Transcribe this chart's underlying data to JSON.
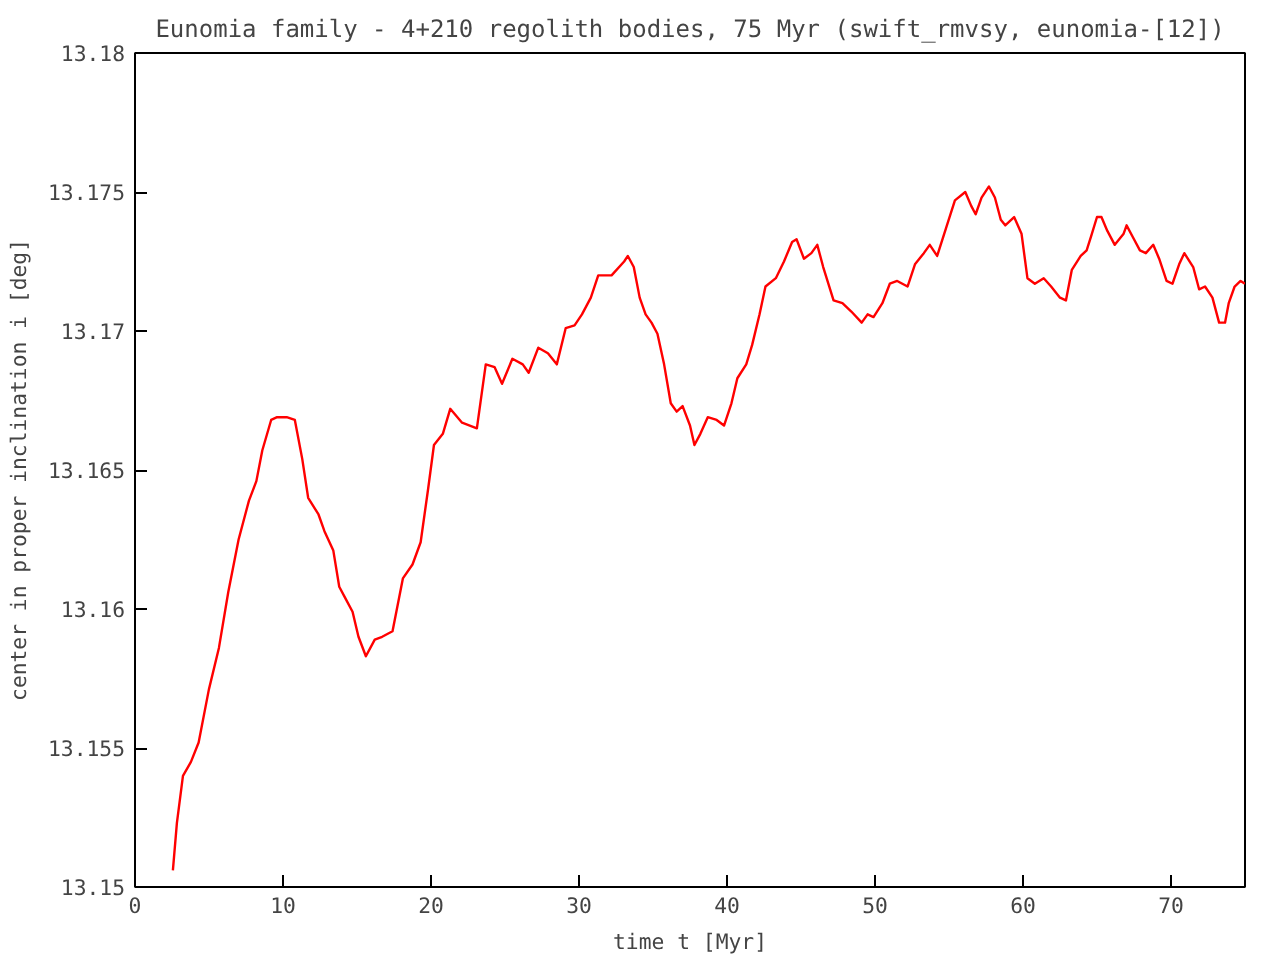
{
  "chart_data": {
    "type": "line",
    "title": "Eunomia family - 4+210 regolith bodies, 75 Myr (swift_rmvsy, eunomia-[12])",
    "xlabel": "time t [Myr]",
    "ylabel": "center in proper inclination i [deg]",
    "xlim": [
      0,
      75
    ],
    "ylim": [
      13.15,
      13.18
    ],
    "xticks": [
      0,
      10,
      20,
      30,
      40,
      50,
      60,
      70
    ],
    "yticks": [
      13.15,
      13.155,
      13.16,
      13.165,
      13.17,
      13.175,
      13.18
    ],
    "grid": false,
    "marker": "none",
    "line_style": "solid",
    "x": [
      2.56,
      2.83,
      3.24,
      3.78,
      4.3,
      4.99,
      5.67,
      6.3,
      7.0,
      7.7,
      8.2,
      8.6,
      9.2,
      9.6,
      10.25,
      10.8,
      11.3,
      11.7,
      12.4,
      12.8,
      13.4,
      13.8,
      14.2,
      14.7,
      15.1,
      15.6,
      16.2,
      16.7,
      17.4,
      18.1,
      18.75,
      19.3,
      19.8,
      20.2,
      20.8,
      21.3,
      22.1,
      23.1,
      23.7,
      24.3,
      24.8,
      25.5,
      26.2,
      26.6,
      27.25,
      27.9,
      28.5,
      29.1,
      29.7,
      30.2,
      30.8,
      31.3,
      32.2,
      33.05,
      33.3,
      33.7,
      34.1,
      34.5,
      34.9,
      35.3,
      35.75,
      36.2,
      36.6,
      37.0,
      37.5,
      37.8,
      38.2,
      38.7,
      39.3,
      39.8,
      40.3,
      40.7,
      41.3,
      41.7,
      42.2,
      42.6,
      43.3,
      43.85,
      44.4,
      44.7,
      45.2,
      45.7,
      46.1,
      46.5,
      47.2,
      47.8,
      48.4,
      49.1,
      49.5,
      49.9,
      50.5,
      51.0,
      51.5,
      52.2,
      52.7,
      53.3,
      53.7,
      54.2,
      54.8,
      55.4,
      56.1,
      56.5,
      56.8,
      57.2,
      57.7,
      58.1,
      58.5,
      58.8,
      59.4,
      59.9,
      60.3,
      60.8,
      61.4,
      61.9,
      62.5,
      62.9,
      63.3,
      63.9,
      64.3,
      64.6,
      65.0,
      65.3,
      65.7,
      66.2,
      66.8,
      67.0,
      67.4,
      67.9,
      68.3,
      68.8,
      69.2,
      69.7,
      70.1,
      70.55,
      70.9,
      71.5,
      71.9,
      72.3,
      72.8,
      73.25,
      73.65,
      73.9,
      74.3,
      74.7,
      75.0
    ],
    "series": [
      {
        "color": "#ff0000",
        "values": [
          13.1506,
          13.1523,
          13.154,
          13.1545,
          13.1552,
          13.1571,
          13.1586,
          13.1606,
          13.1625,
          13.1639,
          13.1646,
          13.1657,
          13.1668,
          13.1669,
          13.1669,
          13.1668,
          13.1654,
          13.164,
          13.1634,
          13.1628,
          13.1621,
          13.1608,
          13.1604,
          13.1599,
          13.159,
          13.1583,
          13.1589,
          13.159,
          13.1592,
          13.1611,
          13.1616,
          13.1624,
          13.1643,
          13.1659,
          13.1663,
          13.1672,
          13.1667,
          13.1665,
          13.1688,
          13.1687,
          13.1681,
          13.169,
          13.1688,
          13.1685,
          13.1694,
          13.1692,
          13.1688,
          13.1701,
          13.1702,
          13.1706,
          13.1712,
          13.172,
          13.172,
          13.1725,
          13.1727,
          13.1723,
          13.1712,
          13.1706,
          13.1703,
          13.1699,
          13.1688,
          13.1674,
          13.1671,
          13.1673,
          13.1666,
          13.1659,
          13.1663,
          13.1669,
          13.1668,
          13.1666,
          13.1674,
          13.1683,
          13.1688,
          13.1695,
          13.1706,
          13.1716,
          13.1719,
          13.1725,
          13.1732,
          13.1733,
          13.1726,
          13.1728,
          13.1731,
          13.1723,
          13.1711,
          13.171,
          13.1707,
          13.1703,
          13.1706,
          13.1705,
          13.171,
          13.1717,
          13.1718,
          13.1716,
          13.1724,
          13.1728,
          13.1731,
          13.1727,
          13.1737,
          13.1747,
          13.175,
          13.1745,
          13.1742,
          13.1748,
          13.1752,
          13.1748,
          13.174,
          13.1738,
          13.1741,
          13.1735,
          13.1719,
          13.1717,
          13.1719,
          13.1716,
          13.1712,
          13.1711,
          13.1722,
          13.1727,
          13.1729,
          13.1734,
          13.1741,
          13.1741,
          13.1736,
          13.1731,
          13.1735,
          13.1738,
          13.1734,
          13.1729,
          13.1728,
          13.1731,
          13.1726,
          13.1718,
          13.1717,
          13.1724,
          13.1728,
          13.1723,
          13.1715,
          13.1716,
          13.1712,
          13.1703,
          13.1703,
          13.171,
          13.1716,
          13.1718,
          13.1717
        ]
      }
    ]
  }
}
